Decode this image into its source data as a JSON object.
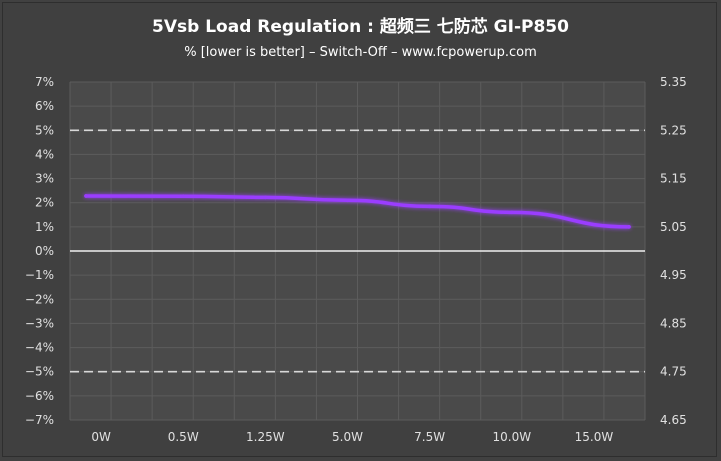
{
  "title": "5Vsb Load Regulation : 超频三 七防芯 GI-P850",
  "subtitle": "% [lower is better] – Switch-Off –  www.fcpowerup.com",
  "colors": {
    "background": "#404040",
    "plot_area": "#4a4a4a",
    "grid": "#5c5c5c",
    "text": "#e0e0e0",
    "series": "#9a3cff",
    "limit_line": "#d8d8d8",
    "zero_line": "#f0f0f0"
  },
  "chart_data": {
    "type": "line",
    "title": "5Vsb Load Regulation : 超频三 七防芯 GI-P850",
    "subtitle": "% [lower is better] – Switch-Off –  www.fcpowerup.com",
    "categories": [
      "0W",
      "0.5W",
      "1.25W",
      "5.0W",
      "7.5W",
      "10.0W",
      "15.0W"
    ],
    "y_left": {
      "ylim": [
        -7,
        7
      ],
      "ticks": [
        7,
        6,
        5,
        4,
        3,
        2,
        1,
        0,
        -1,
        -2,
        -3,
        -4,
        -5,
        -6,
        -7
      ],
      "tick_labels": [
        "7%",
        "6%",
        "5%",
        "4%",
        "3%",
        "2%",
        "1%",
        "0%",
        "−1%",
        "−2%",
        "−3%",
        "−4%",
        "−5%",
        "−6%",
        "−7%"
      ]
    },
    "y_right": {
      "ylim": [
        4.65,
        5.35
      ],
      "tick_labels": [
        "5.35",
        "5.25",
        "5.15",
        "5.05",
        "4.95",
        "4.85",
        "4.75",
        "4.65"
      ]
    },
    "series": [
      {
        "values": [
          2.28,
          2.27,
          2.22,
          2.1,
          1.85,
          1.6,
          1.0
        ]
      }
    ],
    "reference_lines": [
      5,
      -5
    ],
    "grid": true
  }
}
